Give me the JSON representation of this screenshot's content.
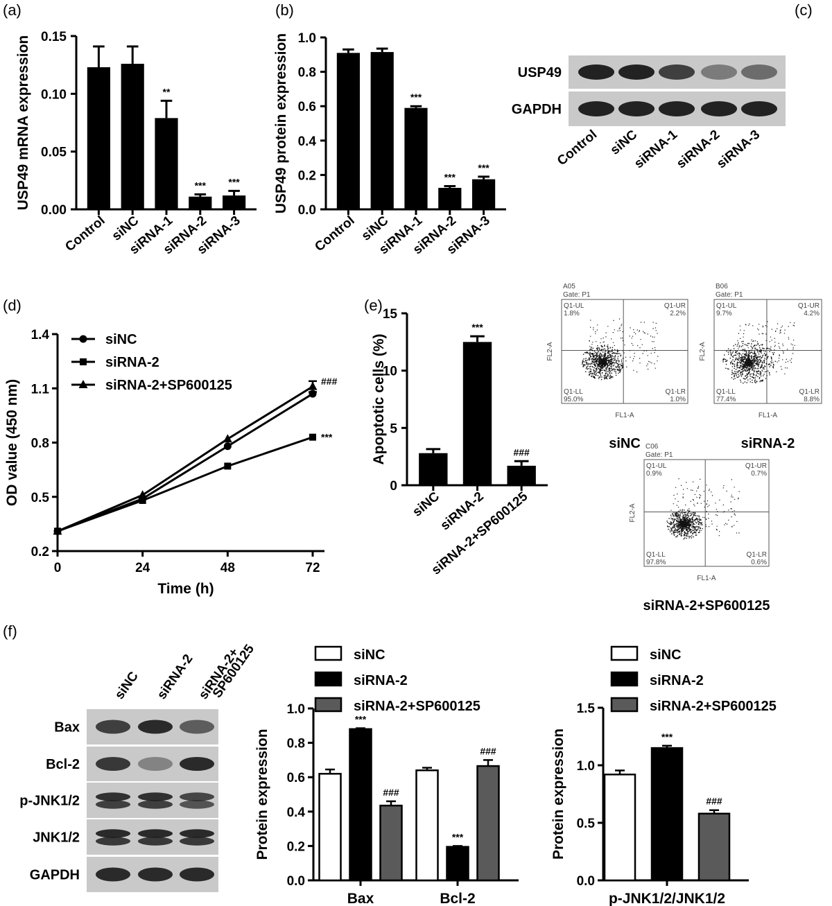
{
  "colors": {
    "black": "#000000",
    "white": "#ffffff",
    "gray": "#5a5a5a",
    "blot_bg": "#c9c9c9",
    "band": "#1a1a1a"
  },
  "panel_labels": [
    "(a)",
    "(b)",
    "(c)",
    "(d)",
    "(e)",
    "(f)"
  ],
  "chart_data": [
    {
      "id": "a",
      "type": "bar",
      "categories": [
        "Control",
        "siNC",
        "siRNA-1",
        "siRNA-2",
        "siRNA-3"
      ],
      "values": [
        0.123,
        0.126,
        0.079,
        0.011,
        0.012
      ],
      "errors": [
        0.018,
        0.015,
        0.015,
        0.002,
        0.004
      ],
      "annotations": [
        "",
        "",
        "**",
        "***",
        "***"
      ],
      "ylabel": "USP49 mRNA expression",
      "ylim": [
        0,
        0.15
      ],
      "yticks": [
        "0.00",
        "0.05",
        "0.10",
        "0.15"
      ]
    },
    {
      "id": "b",
      "type": "bar",
      "categories": [
        "Control",
        "siNC",
        "siRNA-1",
        "siRNA-2",
        "siRNA-3"
      ],
      "values": [
        0.91,
        0.915,
        0.59,
        0.125,
        0.175
      ],
      "errors": [
        0.02,
        0.02,
        0.01,
        0.01,
        0.015
      ],
      "annotations": [
        "",
        "",
        "***",
        "***",
        "***"
      ],
      "ylabel": "USP49 protein expression",
      "ylim": [
        0,
        1.0
      ],
      "yticks": [
        "0.0",
        "0.2",
        "0.4",
        "0.6",
        "0.8",
        "1.0"
      ]
    },
    {
      "id": "d",
      "type": "line",
      "x": [
        0,
        24,
        48,
        72
      ],
      "xticks": [
        "0",
        "24",
        "48",
        "72"
      ],
      "series": [
        {
          "name": "siNC",
          "marker": "circle",
          "values": [
            0.31,
            0.49,
            0.78,
            1.07
          ],
          "errors": [
            0,
            0,
            0,
            0.01
          ],
          "end_annotation": ""
        },
        {
          "name": "siRNA-2",
          "marker": "square",
          "values": [
            0.31,
            0.48,
            0.67,
            0.83
          ],
          "errors": [
            0,
            0,
            0,
            0
          ],
          "end_annotation": "***"
        },
        {
          "name": "siRNA-2+SP600125",
          "marker": "triangle",
          "values": [
            0.31,
            0.51,
            0.82,
            1.11
          ],
          "errors": [
            0,
            0,
            0,
            0.03
          ],
          "end_annotation": "###"
        }
      ],
      "xlabel": "Time (h)",
      "ylabel": "OD value (450 nm)",
      "xlim": [
        0,
        72
      ],
      "ylim": [
        0.2,
        1.4
      ],
      "yticks": [
        "0.2",
        "0.5",
        "0.8",
        "1.1",
        "1.4"
      ],
      "legend": "top-left"
    },
    {
      "id": "e",
      "type": "bar",
      "categories": [
        "siNC",
        "siRNA-2",
        "siRNA-2+SP600125"
      ],
      "values": [
        2.8,
        12.5,
        1.7
      ],
      "errors": [
        0.35,
        0.5,
        0.4
      ],
      "annotations": [
        "",
        "***",
        "###"
      ],
      "ylabel": "Apoptotic cells (%)",
      "ylim": [
        0,
        15
      ],
      "yticks": [
        "0",
        "5",
        "10",
        "15"
      ]
    },
    {
      "id": "f_mid",
      "type": "bar",
      "categories": [
        "Bax",
        "Bcl-2"
      ],
      "series": [
        {
          "name": "siNC",
          "fill": "#ffffff",
          "values": [
            0.62,
            0.64
          ],
          "errors": [
            0.025,
            0.015
          ],
          "annotations": [
            "",
            ""
          ]
        },
        {
          "name": "siRNA-2",
          "fill": "#000000",
          "values": [
            0.88,
            0.195
          ],
          "errors": [
            0.005,
            0.005
          ],
          "annotations": [
            "***",
            "***"
          ]
        },
        {
          "name": "siRNA-2+SP600125",
          "fill": "#5a5a5a",
          "values": [
            0.435,
            0.665
          ],
          "errors": [
            0.025,
            0.035
          ],
          "annotations": [
            "###",
            "###"
          ]
        }
      ],
      "ylabel": "Protein expression",
      "ylim": [
        0,
        1.0
      ],
      "yticks": [
        "0.0",
        "0.2",
        "0.4",
        "0.6",
        "0.8",
        "1.0"
      ],
      "legend": "top"
    },
    {
      "id": "f_right",
      "type": "bar",
      "categories": [
        "p-JNK1/2/JNK1/2"
      ],
      "series": [
        {
          "name": "siNC",
          "fill": "#ffffff",
          "values": [
            0.92
          ],
          "errors": [
            0.035
          ],
          "annotations": [
            ""
          ]
        },
        {
          "name": "siRNA-2",
          "fill": "#000000",
          "values": [
            1.15
          ],
          "errors": [
            0.02
          ],
          "annotations": [
            "***"
          ]
        },
        {
          "name": "siRNA-2+SP600125",
          "fill": "#5a5a5a",
          "values": [
            0.58
          ],
          "errors": [
            0.03
          ],
          "annotations": [
            "###"
          ]
        }
      ],
      "ylabel": "Protein expression",
      "ylim": [
        0,
        1.5
      ],
      "yticks": [
        "0.0",
        "0.5",
        "1.0",
        "1.5"
      ],
      "legend": "top"
    }
  ],
  "blot_c": {
    "rows": [
      "USP49",
      "GAPDH"
    ],
    "lanes": [
      "Control",
      "siNC",
      "siRNA-1",
      "siRNA-2",
      "siRNA-3"
    ],
    "intensity": [
      [
        0.95,
        0.95,
        0.75,
        0.35,
        0.45
      ],
      [
        0.95,
        0.95,
        0.95,
        0.95,
        0.95
      ]
    ]
  },
  "blot_f": {
    "rows": [
      "Bax",
      "Bcl-2",
      "p-JNK1/2",
      "JNK1/2",
      "GAPDH"
    ],
    "lanes": [
      "siNC",
      "siRNA-2",
      "siRNA-2+\nSP600125"
    ],
    "lane_lines": [
      [
        "siNC"
      ],
      [
        "siRNA-2"
      ],
      [
        "siRNA-2+",
        "SP600125"
      ]
    ],
    "intensity": [
      [
        0.75,
        0.9,
        0.55
      ],
      [
        0.8,
        0.3,
        0.9
      ],
      [
        0.85,
        0.85,
        0.7
      ],
      [
        0.9,
        0.9,
        0.9
      ],
      [
        0.9,
        0.9,
        0.9
      ]
    ]
  },
  "flow": [
    {
      "name": "siNC",
      "sample": "A05",
      "gate": "Gate: P1",
      "quadrants": {
        "ul": "Q1-UL",
        "ul_val": "1.8%",
        "ur": "Q1-UR",
        "ur_val": "2.2%",
        "ll": "Q1-LL",
        "ll_val": "95.0%",
        "lr": "Q1-LR",
        "lr_val": "1.0%"
      },
      "xaxis": "FL1-A",
      "yaxis": "FL2-A"
    },
    {
      "name": "siRNA-2",
      "sample": "B06",
      "gate": "Gate: P1",
      "quadrants": {
        "ul": "Q1-UL",
        "ul_val": "9.7%",
        "ur": "Q1-UR",
        "ur_val": "4.2%",
        "ll": "Q1-LL",
        "ll_val": "77.4%",
        "lr": "Q1-LR",
        "lr_val": "8.8%"
      },
      "xaxis": "FL1-A",
      "yaxis": "FL2-A"
    },
    {
      "name": "siRNA-2+SP600125",
      "sample": "C06",
      "gate": "Gate: P1",
      "quadrants": {
        "ul": "Q1-UL",
        "ul_val": "0.9%",
        "ur": "Q1-UR",
        "ur_val": "0.7%",
        "ll": "Q1-LL",
        "ll_val": "97.8%",
        "lr": "Q1-LR",
        "lr_val": "0.6%"
      },
      "xaxis": "FL1-A",
      "yaxis": "FL2-A"
    }
  ]
}
